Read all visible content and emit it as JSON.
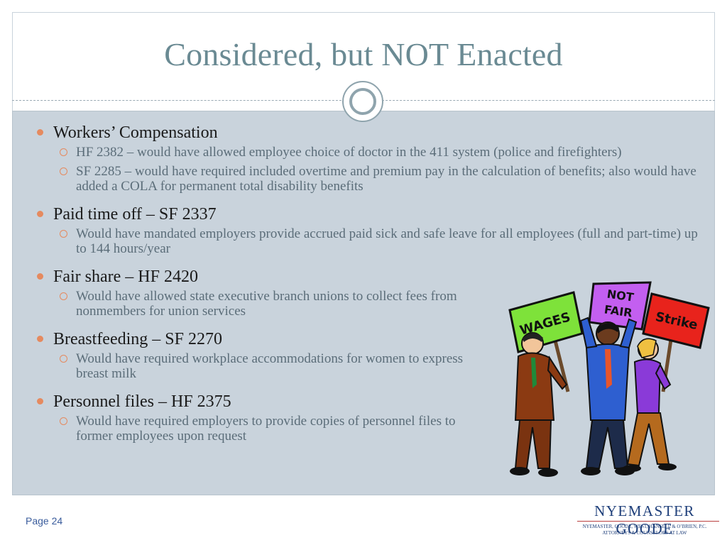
{
  "slide": {
    "title": "Considered, but NOT Enacted",
    "page_label": "Page 24",
    "accent_color": "#e58a5f",
    "title_color": "#6a8a93"
  },
  "bullets": [
    {
      "heading": "Workers’ Compensation",
      "subs": [
        "HF 2382 – would have allowed employee choice of doctor in the 411 system (police and firefighters)",
        "SF 2285 – would have required included overtime and premium pay in the calculation of benefits; also would have added a COLA for permanent total disability benefits"
      ]
    },
    {
      "heading": "Paid time off – SF 2337",
      "subs": [
        "Would have mandated employers provide accrued paid sick and safe leave for all employees (full and part-time) up to 144 hours/year"
      ]
    },
    {
      "heading": "Fair share – HF 2420",
      "subs": [
        "Would have allowed state executive branch unions to collect fees from nonmembers for union services"
      ]
    },
    {
      "heading": "Breastfeeding – SF 2270",
      "subs": [
        "Would have required workplace accommodations for women to express breast milk"
      ]
    },
    {
      "heading": "Personnel files – HF 2375",
      "subs": [
        "Would have required employers to provide copies of personnel files to former employees upon request"
      ]
    }
  ],
  "clipart": {
    "sign_1": "WAGES",
    "sign_2a": "NOT",
    "sign_2b": "FAIR",
    "sign_3": "Strike"
  },
  "logo": {
    "name": "NYEMASTER GOODE",
    "line1": "NYEMASTER, GOODE, WEST, HANSELL & O’BRIEN, P.C.",
    "line2": "ATTORNEYS & COUNSELORS AT LAW"
  }
}
